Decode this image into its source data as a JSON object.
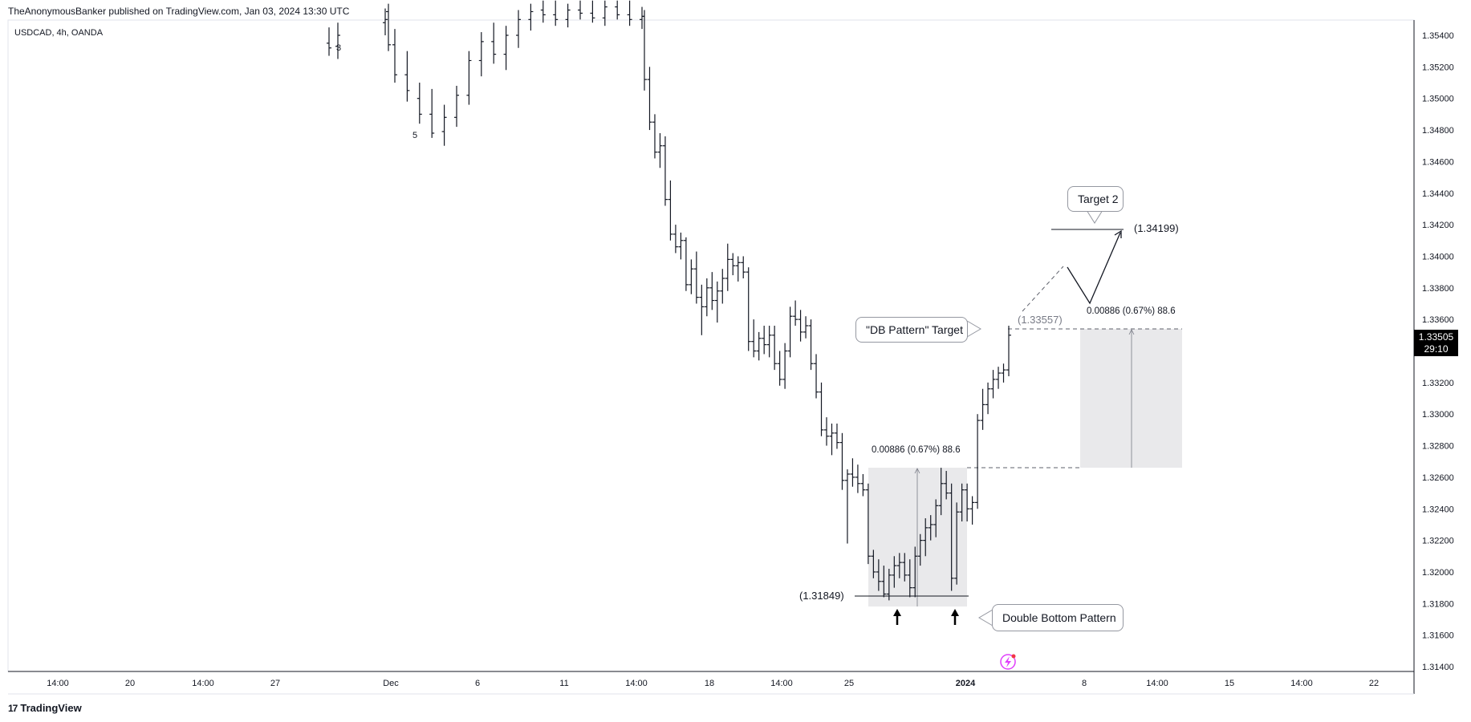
{
  "header": {
    "published": "TheAnonymousBanker published on TradingView.com, Jan 03, 2024 13:30 UTC",
    "symbol": "USDCAD, 4h, OANDA"
  },
  "footer": {
    "brand": "TradingView",
    "logo_glyph": "17"
  },
  "price_badge": {
    "price": "1.33505",
    "countdown": "29:10"
  },
  "colors": {
    "candle": "#131722",
    "box_fill": "#e9e9eb",
    "grid_line": "#e0e3eb",
    "dashed": "#5d606b"
  },
  "chart_data": {
    "type": "bar",
    "style": "ohlc-bars",
    "y_axis": {
      "min": 1.314,
      "max": 1.356,
      "ticks": [
        "1.35400",
        "1.35200",
        "1.35000",
        "1.34800",
        "1.34600",
        "1.34400",
        "1.34200",
        "1.34000",
        "1.33800",
        "1.33600",
        "1.33400",
        "1.33200",
        "1.33000",
        "1.32800",
        "1.32600",
        "1.32400",
        "1.32200",
        "1.32000",
        "1.31800",
        "1.31600",
        "1.31400"
      ]
    },
    "x_axis": {
      "ticks": [
        "14:00",
        "20",
        "14:00",
        "27",
        "Dec",
        "6",
        "11",
        "14:00",
        "18",
        "14:00",
        "25",
        "2024",
        "8",
        "14:00",
        "15",
        "14:00",
        "22"
      ]
    },
    "wave_labels": [
      "3",
      "5"
    ],
    "annotations": {
      "db_target_label": "\"DB Pattern\" Target",
      "db_target_price": "(1.33557)",
      "target2_label": "Target 2",
      "target2_price": "(1.34199)",
      "double_bottom_label": "Double Bottom Pattern",
      "neckline_price": "(1.31849)",
      "measure_left": "0.00886 (0.67%) 88.6",
      "measure_right": "0.00886 (0.67%) 88.6"
    },
    "bars": [
      {
        "o": 1.3535,
        "h": 1.3545,
        "l": 1.3527,
        "c": 1.3532
      },
      {
        "o": 1.3533,
        "h": 1.3548,
        "l": 1.3525,
        "c": 1.354
      },
      {
        "o": 1.3548,
        "h": 1.3557,
        "l": 1.354,
        "c": 1.355
      },
      {
        "o": 1.3555,
        "h": 1.356,
        "l": 1.353,
        "c": 1.3534
      },
      {
        "o": 1.3534,
        "h": 1.3544,
        "l": 1.351,
        "c": 1.3515
      },
      {
        "o": 1.3515,
        "h": 1.353,
        "l": 1.3498,
        "c": 1.3505
      },
      {
        "o": 1.35,
        "h": 1.351,
        "l": 1.3484,
        "c": 1.349
      },
      {
        "o": 1.349,
        "h": 1.3506,
        "l": 1.3475,
        "c": 1.3478
      },
      {
        "o": 1.3479,
        "h": 1.3496,
        "l": 1.347,
        "c": 1.3488
      },
      {
        "o": 1.3488,
        "h": 1.3508,
        "l": 1.3482,
        "c": 1.3502
      },
      {
        "o": 1.3502,
        "h": 1.353,
        "l": 1.3496,
        "c": 1.3524
      },
      {
        "o": 1.3524,
        "h": 1.3542,
        "l": 1.3514,
        "c": 1.3536
      },
      {
        "o": 1.3536,
        "h": 1.3548,
        "l": 1.3522,
        "c": 1.3528
      },
      {
        "o": 1.3528,
        "h": 1.3546,
        "l": 1.3518,
        "c": 1.354
      },
      {
        "o": 1.354,
        "h": 1.3556,
        "l": 1.3532,
        "c": 1.355
      },
      {
        "o": 1.355,
        "h": 1.356,
        "l": 1.3543,
        "c": 1.3555
      },
      {
        "o": 1.3556,
        "h": 1.3562,
        "l": 1.3548,
        "c": 1.3553
      },
      {
        "o": 1.3553,
        "h": 1.3562,
        "l": 1.3546,
        "c": 1.355
      },
      {
        "o": 1.355,
        "h": 1.356,
        "l": 1.3545,
        "c": 1.3556
      },
      {
        "o": 1.3556,
        "h": 1.3562,
        "l": 1.355,
        "c": 1.3554
      },
      {
        "o": 1.3554,
        "h": 1.3562,
        "l": 1.3548,
        "c": 1.3551
      },
      {
        "o": 1.3551,
        "h": 1.3562,
        "l": 1.3546,
        "c": 1.3558
      },
      {
        "o": 1.3558,
        "h": 1.3562,
        "l": 1.355,
        "c": 1.3553
      },
      {
        "o": 1.3553,
        "h": 1.3562,
        "l": 1.3546,
        "c": 1.355
      },
      {
        "o": 1.355,
        "h": 1.3558,
        "l": 1.3544,
        "c": 1.3552
      },
      {
        "o": 1.3552,
        "h": 1.3556,
        "l": 1.3505,
        "c": 1.3512
      },
      {
        "o": 1.3512,
        "h": 1.352,
        "l": 1.348,
        "c": 1.3485
      },
      {
        "o": 1.3485,
        "h": 1.349,
        "l": 1.3462,
        "c": 1.3466
      },
      {
        "o": 1.3466,
        "h": 1.3478,
        "l": 1.3456,
        "c": 1.347
      },
      {
        "o": 1.347,
        "h": 1.3476,
        "l": 1.3432,
        "c": 1.3436
      },
      {
        "o": 1.3436,
        "h": 1.3448,
        "l": 1.341,
        "c": 1.3414
      },
      {
        "o": 1.3414,
        "h": 1.342,
        "l": 1.3402,
        "c": 1.3406
      },
      {
        "o": 1.3406,
        "h": 1.3415,
        "l": 1.3398,
        "c": 1.341
      },
      {
        "o": 1.341,
        "h": 1.3412,
        "l": 1.3378,
        "c": 1.3382
      },
      {
        "o": 1.3382,
        "h": 1.3398,
        "l": 1.3376,
        "c": 1.3392
      },
      {
        "o": 1.3392,
        "h": 1.3403,
        "l": 1.337,
        "c": 1.3374
      },
      {
        "o": 1.3374,
        "h": 1.3382,
        "l": 1.335,
        "c": 1.3368
      },
      {
        "o": 1.3368,
        "h": 1.3386,
        "l": 1.3362,
        "c": 1.338
      },
      {
        "o": 1.338,
        "h": 1.339,
        "l": 1.3366,
        "c": 1.3372
      },
      {
        "o": 1.3372,
        "h": 1.3384,
        "l": 1.3358,
        "c": 1.3378
      },
      {
        "o": 1.3378,
        "h": 1.3392,
        "l": 1.337,
        "c": 1.3386
      },
      {
        "o": 1.3386,
        "h": 1.3408,
        "l": 1.3378,
        "c": 1.3398
      },
      {
        "o": 1.3398,
        "h": 1.3402,
        "l": 1.3388,
        "c": 1.3394
      },
      {
        "o": 1.3394,
        "h": 1.34,
        "l": 1.3384,
        "c": 1.3396
      },
      {
        "o": 1.3396,
        "h": 1.34,
        "l": 1.3386,
        "c": 1.339
      },
      {
        "o": 1.339,
        "h": 1.3393,
        "l": 1.334,
        "c": 1.3346
      },
      {
        "o": 1.3346,
        "h": 1.336,
        "l": 1.3336,
        "c": 1.334
      },
      {
        "o": 1.334,
        "h": 1.3352,
        "l": 1.3334,
        "c": 1.3348
      },
      {
        "o": 1.3348,
        "h": 1.3356,
        "l": 1.3338,
        "c": 1.3344
      },
      {
        "o": 1.3344,
        "h": 1.3356,
        "l": 1.3336,
        "c": 1.335
      },
      {
        "o": 1.335,
        "h": 1.3356,
        "l": 1.3328,
        "c": 1.3332
      },
      {
        "o": 1.3332,
        "h": 1.334,
        "l": 1.3318,
        "c": 1.3322
      },
      {
        "o": 1.3322,
        "h": 1.3345,
        "l": 1.3316,
        "c": 1.334
      },
      {
        "o": 1.334,
        "h": 1.3368,
        "l": 1.3336,
        "c": 1.3362
      },
      {
        "o": 1.3362,
        "h": 1.3372,
        "l": 1.3356,
        "c": 1.336
      },
      {
        "o": 1.336,
        "h": 1.3366,
        "l": 1.3346,
        "c": 1.3352
      },
      {
        "o": 1.3352,
        "h": 1.3362,
        "l": 1.3348,
        "c": 1.3356
      },
      {
        "o": 1.3356,
        "h": 1.336,
        "l": 1.3328,
        "c": 1.3332
      },
      {
        "o": 1.3332,
        "h": 1.3338,
        "l": 1.331,
        "c": 1.3314
      },
      {
        "o": 1.3314,
        "h": 1.332,
        "l": 1.3286,
        "c": 1.329
      },
      {
        "o": 1.329,
        "h": 1.3298,
        "l": 1.328,
        "c": 1.3286
      },
      {
        "o": 1.3286,
        "h": 1.3294,
        "l": 1.3274,
        "c": 1.3288
      },
      {
        "o": 1.3288,
        "h": 1.3294,
        "l": 1.3278,
        "c": 1.3282
      },
      {
        "o": 1.3282,
        "h": 1.3288,
        "l": 1.3252,
        "c": 1.3258
      },
      {
        "o": 1.3258,
        "h": 1.3265,
        "l": 1.3218,
        "c": 1.3262
      },
      {
        "o": 1.3262,
        "h": 1.3272,
        "l": 1.3254,
        "c": 1.326
      },
      {
        "o": 1.326,
        "h": 1.3268,
        "l": 1.325,
        "c": 1.3256
      },
      {
        "o": 1.3256,
        "h": 1.3262,
        "l": 1.3248,
        "c": 1.3252
      },
      {
        "o": 1.3252,
        "h": 1.3256,
        "l": 1.3205,
        "c": 1.321
      },
      {
        "o": 1.321,
        "h": 1.3214,
        "l": 1.3196,
        "c": 1.32
      },
      {
        "o": 1.32,
        "h": 1.3208,
        "l": 1.3188,
        "c": 1.3194
      },
      {
        "o": 1.3194,
        "h": 1.3204,
        "l": 1.3184,
        "c": 1.3186
      },
      {
        "o": 1.3186,
        "h": 1.3202,
        "l": 1.3182,
        "c": 1.3198
      },
      {
        "o": 1.3198,
        "h": 1.321,
        "l": 1.319,
        "c": 1.3204
      },
      {
        "o": 1.3204,
        "h": 1.3212,
        "l": 1.3196,
        "c": 1.3206
      },
      {
        "o": 1.3206,
        "h": 1.3212,
        "l": 1.3194,
        "c": 1.3198
      },
      {
        "o": 1.3198,
        "h": 1.3208,
        "l": 1.3184,
        "c": 1.319
      },
      {
        "o": 1.319,
        "h": 1.3216,
        "l": 1.3184,
        "c": 1.321
      },
      {
        "o": 1.321,
        "h": 1.3224,
        "l": 1.3204,
        "c": 1.322
      },
      {
        "o": 1.322,
        "h": 1.3234,
        "l": 1.321,
        "c": 1.3228
      },
      {
        "o": 1.3228,
        "h": 1.3236,
        "l": 1.322,
        "c": 1.323
      },
      {
        "o": 1.323,
        "h": 1.3246,
        "l": 1.3222,
        "c": 1.3242
      },
      {
        "o": 1.3242,
        "h": 1.3266,
        "l": 1.3236,
        "c": 1.3256
      },
      {
        "o": 1.3256,
        "h": 1.3264,
        "l": 1.3246,
        "c": 1.325
      },
      {
        "o": 1.325,
        "h": 1.3256,
        "l": 1.3188,
        "c": 1.3196
      },
      {
        "o": 1.3196,
        "h": 1.3244,
        "l": 1.3192,
        "c": 1.3238
      },
      {
        "o": 1.3238,
        "h": 1.3256,
        "l": 1.3232,
        "c": 1.3252
      },
      {
        "o": 1.3252,
        "h": 1.3256,
        "l": 1.3232,
        "c": 1.324
      },
      {
        "o": 1.324,
        "h": 1.3248,
        "l": 1.323,
        "c": 1.3244
      },
      {
        "o": 1.3244,
        "h": 1.33,
        "l": 1.324,
        "c": 1.3296
      },
      {
        "o": 1.3296,
        "h": 1.3316,
        "l": 1.329,
        "c": 1.3306
      },
      {
        "o": 1.3306,
        "h": 1.332,
        "l": 1.33,
        "c": 1.3316
      },
      {
        "o": 1.3316,
        "h": 1.3328,
        "l": 1.331,
        "c": 1.3322
      },
      {
        "o": 1.3322,
        "h": 1.333,
        "l": 1.3316,
        "c": 1.3326
      },
      {
        "o": 1.3326,
        "h": 1.3332,
        "l": 1.332,
        "c": 1.3328
      },
      {
        "o": 1.3328,
        "h": 1.3356,
        "l": 1.3324,
        "c": 1.335
      }
    ]
  }
}
